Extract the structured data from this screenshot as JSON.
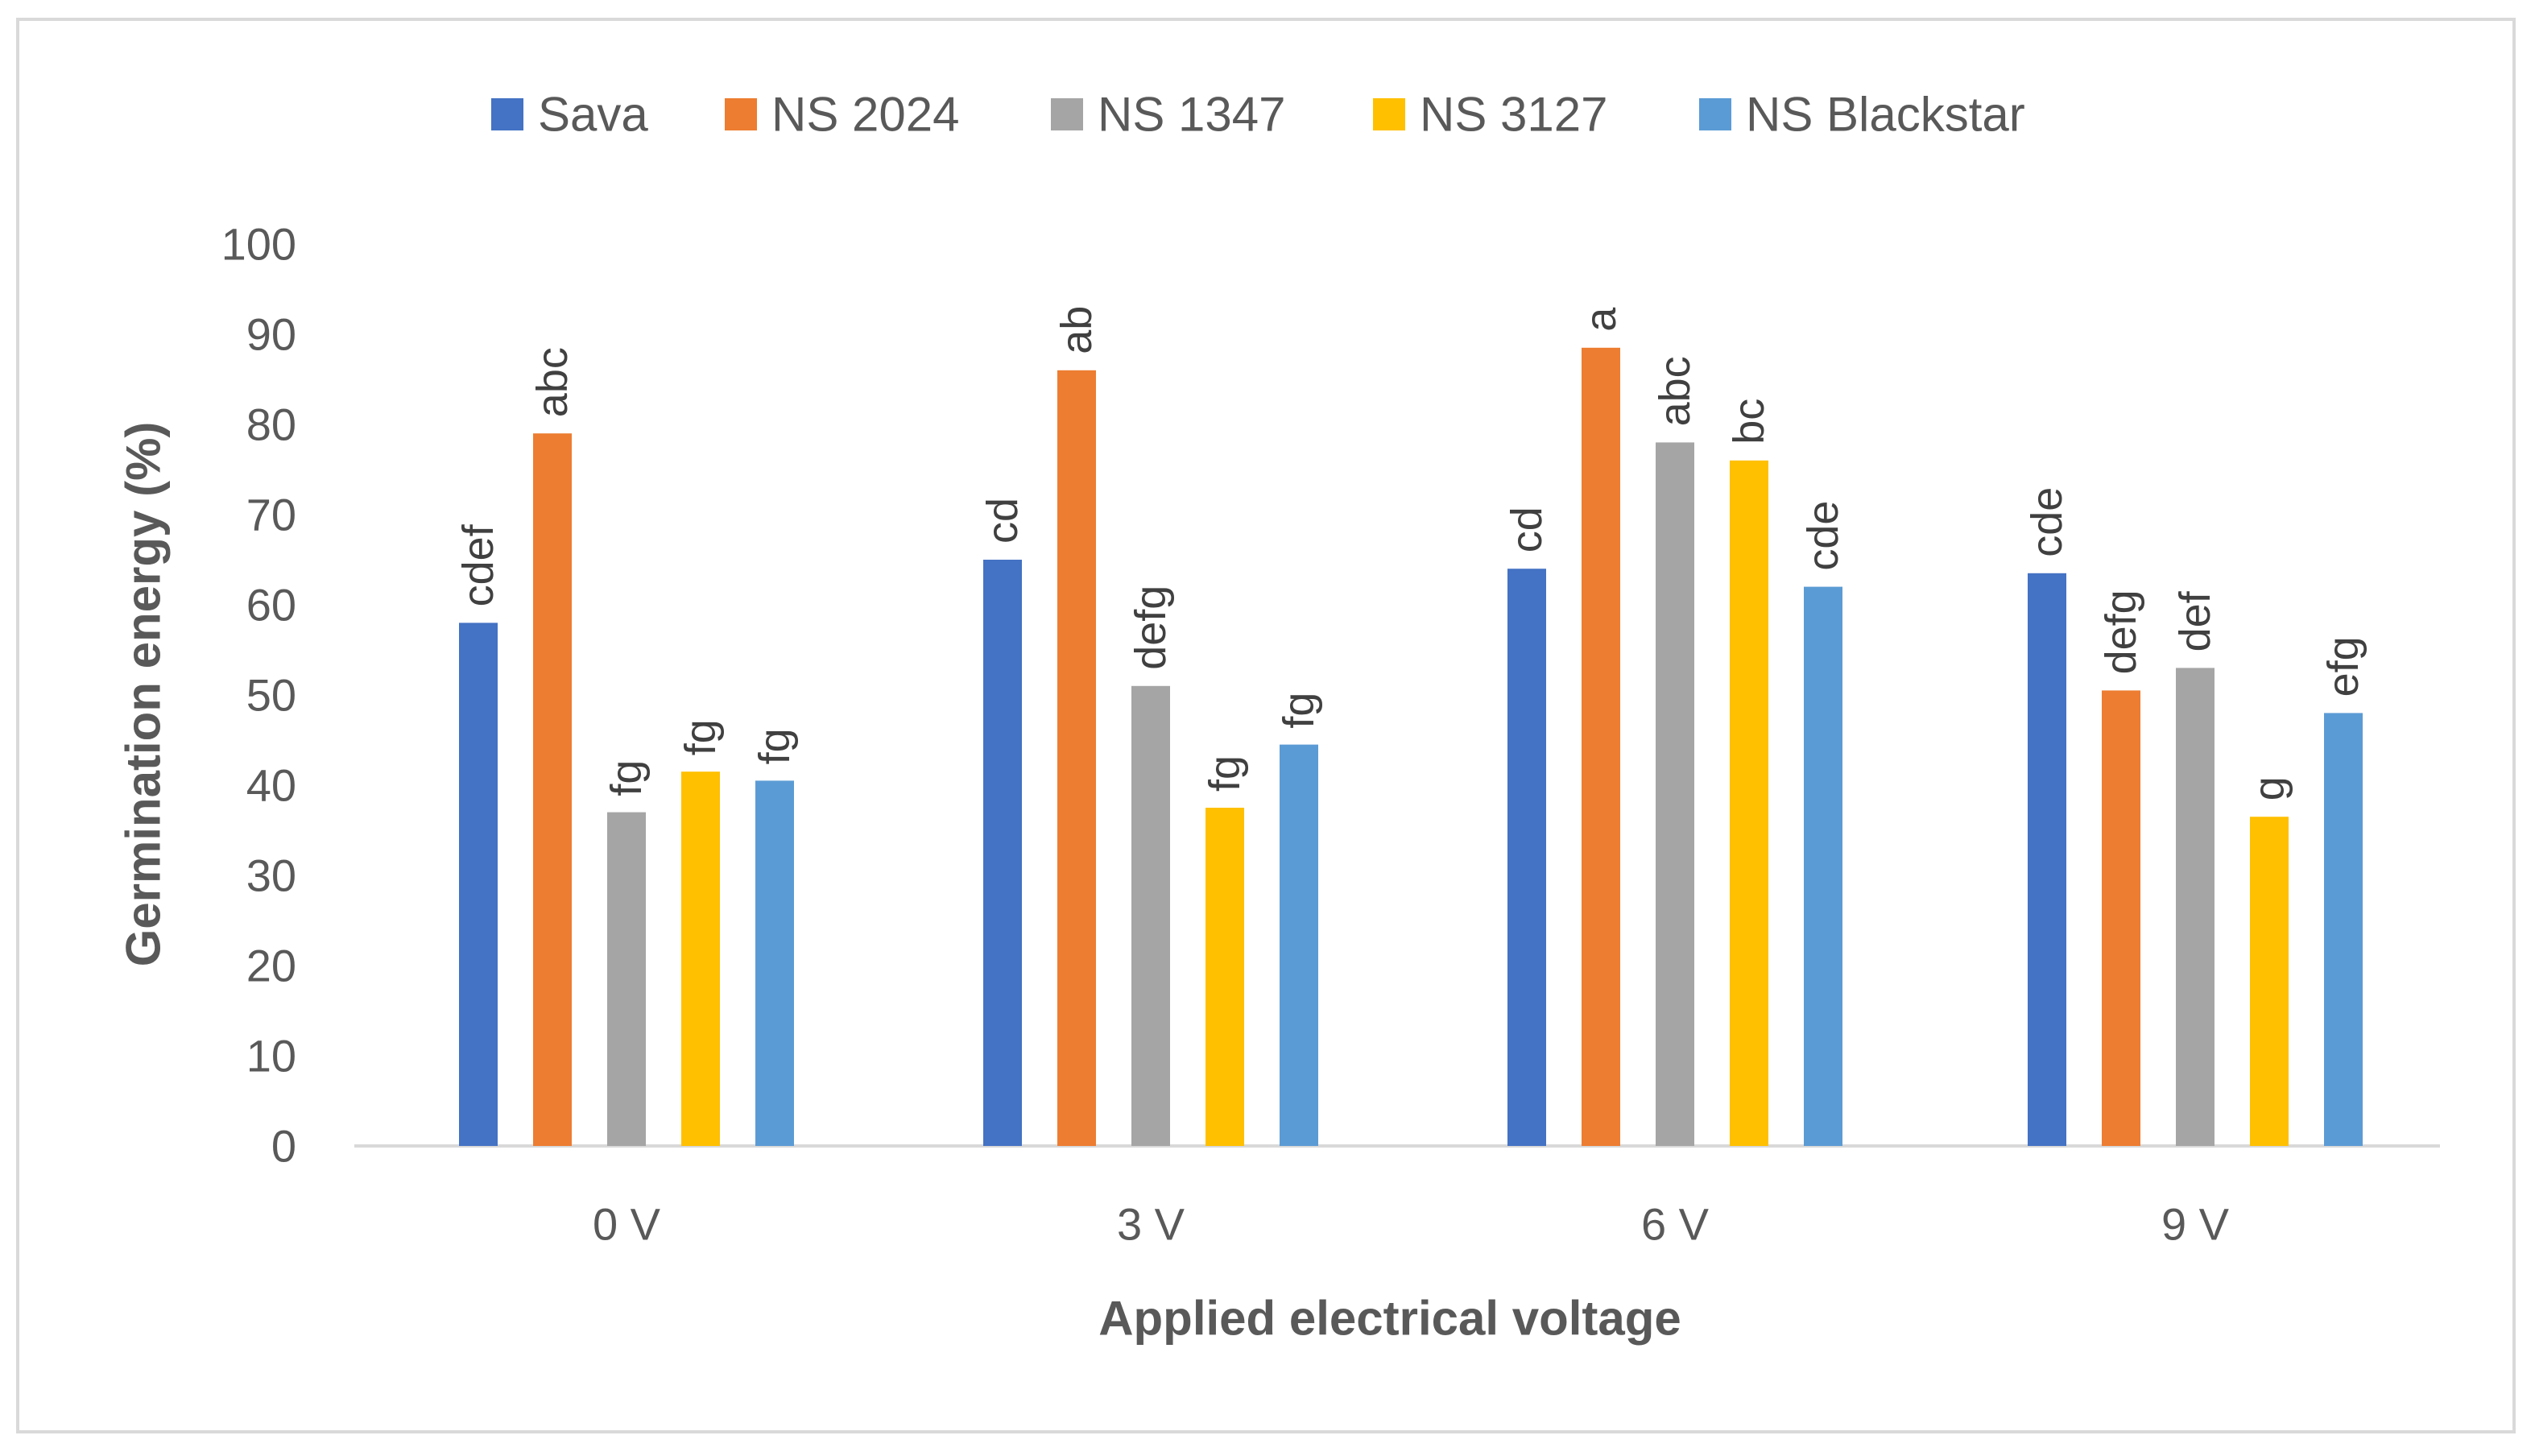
{
  "chart_data": {
    "type": "bar",
    "title": "",
    "xlabel": "Applied electrical voltage",
    "ylabel": "Germination energy (%)",
    "ylim": [
      0,
      100
    ],
    "yticks": [
      "0",
      "10",
      "20",
      "30",
      "40",
      "50",
      "60",
      "70",
      "80",
      "90",
      "100"
    ],
    "categories": [
      "0 V",
      "3 V",
      "6 V",
      "9 V"
    ],
    "legend_position": "top",
    "grid": false,
    "series": [
      {
        "name": "Sava",
        "color": "#4472c4",
        "values": [
          58,
          65,
          64,
          63.5
        ],
        "labels": [
          "cdef",
          "cd",
          "cd",
          "cde"
        ]
      },
      {
        "name": "NS 2024",
        "color": "#ed7d31",
        "values": [
          79,
          86,
          88.5,
          50.5
        ],
        "labels": [
          "abc",
          "ab",
          "a",
          "defg"
        ]
      },
      {
        "name": "NS 1347",
        "color": "#a5a5a5",
        "values": [
          37,
          51,
          78,
          53
        ],
        "labels": [
          "fg",
          "defg",
          "abc",
          "def"
        ]
      },
      {
        "name": "NS 3127",
        "color": "#ffc000",
        "values": [
          41.5,
          37.5,
          76,
          36.5
        ],
        "labels": [
          "fg",
          "fg",
          "bc",
          "g"
        ]
      },
      {
        "name": "NS Blackstar",
        "color": "#5b9bd5",
        "values": [
          40.5,
          44.5,
          62,
          48
        ],
        "labels": [
          "fg",
          "fg",
          "cde",
          "efg"
        ]
      }
    ]
  }
}
